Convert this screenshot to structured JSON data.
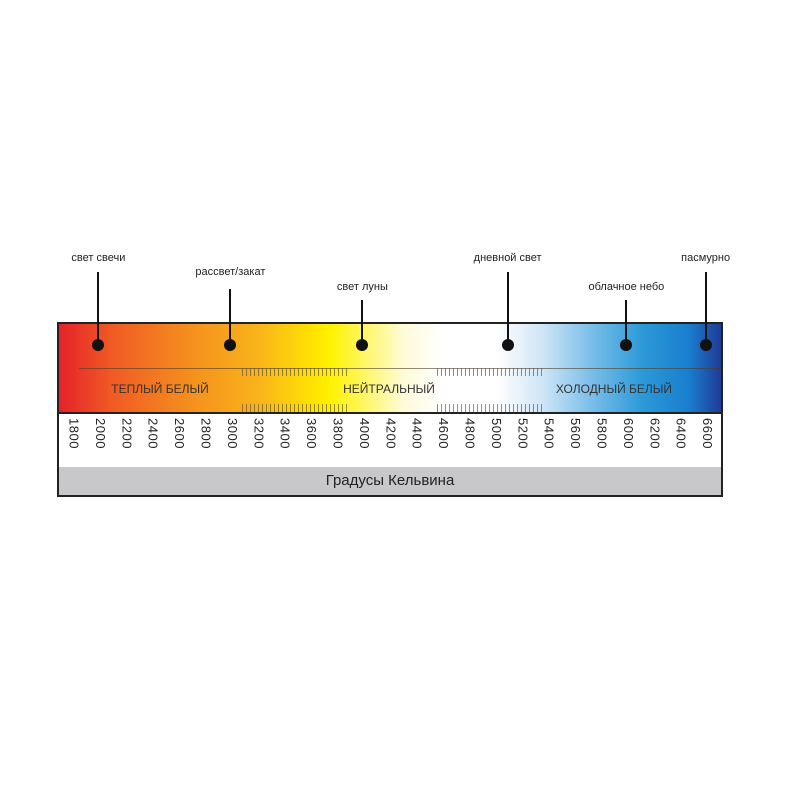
{
  "markers": [
    {
      "label": "свет свечи",
      "kelvin": 2000
    },
    {
      "label": "рассвет/закат",
      "kelvin": 3000
    },
    {
      "label": "свет луны",
      "kelvin": 4000
    },
    {
      "label": "дневной свет",
      "kelvin": 5100
    },
    {
      "label": "облачное небо",
      "kelvin": 6000
    },
    {
      "label": "пасмурно",
      "kelvin": 6600
    }
  ],
  "bands": [
    {
      "label": "ТЕПЛЫЙ БЕЛЫЙ"
    },
    {
      "label": "НЕЙТРАЛЬНЫЙ"
    },
    {
      "label": "ХОЛОДНЫЙ БЕЛЫЙ"
    }
  ],
  "scale": {
    "ticks": [
      "1800",
      "2000",
      "2200",
      "2400",
      "2600",
      "2800",
      "3000",
      "3200",
      "3400",
      "3600",
      "3800",
      "4000",
      "4200",
      "4400",
      "4600",
      "4800",
      "5000",
      "5200",
      "5400",
      "5600",
      "5800",
      "6000",
      "6200",
      "6400",
      "6600"
    ],
    "axis_title": "Градусы Кельвина"
  },
  "colors": {
    "warm": "#e5222a",
    "yellow": "#fff200",
    "neutral": "#ffffff",
    "cool": "#2c9ad8",
    "deep_blue": "#1f3c98",
    "footer": "#c8c8ca"
  }
}
